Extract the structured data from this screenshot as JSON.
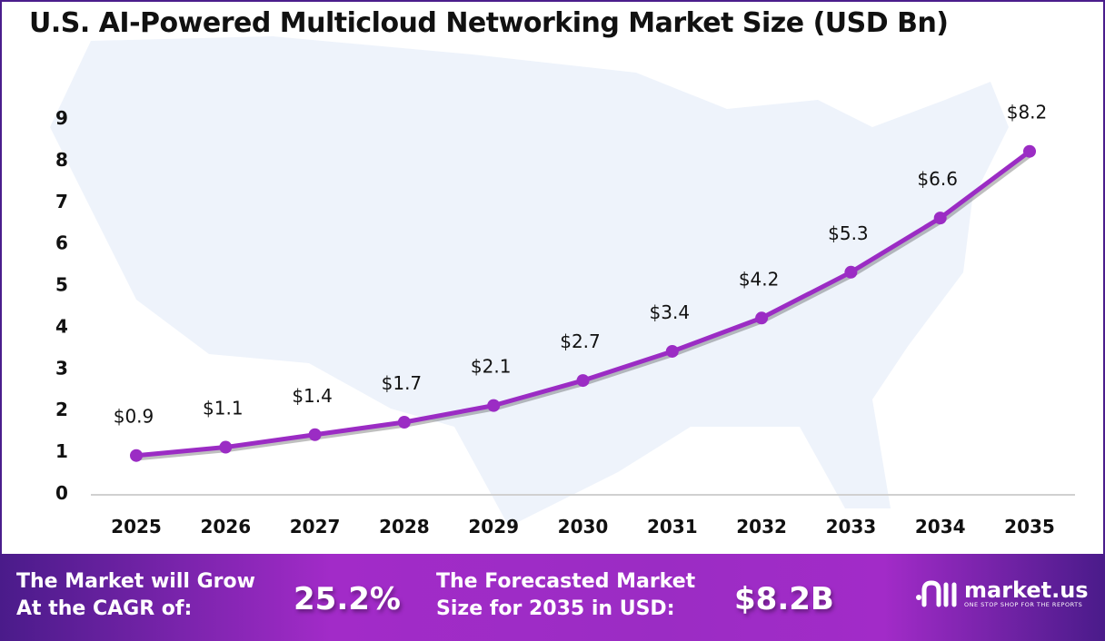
{
  "chart_data": {
    "type": "line",
    "title": "U.S. AI-Powered Multicloud Networking Market Size (USD Bn)",
    "categories": [
      "2025",
      "2026",
      "2027",
      "2028",
      "2029",
      "2030",
      "2031",
      "2032",
      "2033",
      "2034",
      "2035"
    ],
    "values": [
      0.9,
      1.1,
      1.4,
      1.7,
      2.1,
      2.7,
      3.4,
      4.2,
      5.3,
      6.6,
      8.2
    ],
    "data_labels": [
      "$0.9",
      "$1.1",
      "$1.4",
      "$1.7",
      "$2.1",
      "$2.7",
      "$3.4",
      "$4.2",
      "$5.3",
      "$6.6",
      "$8.2"
    ],
    "yticks": [
      "0",
      "1",
      "2",
      "3",
      "4",
      "5",
      "6",
      "7",
      "8",
      "9"
    ],
    "ylim": [
      0,
      9
    ],
    "grid": false,
    "line_color": "#9b2cc4"
  },
  "footer": {
    "cagr_label_line1": "The Market will Grow",
    "cagr_label_line2": "At the CAGR of:",
    "cagr_value": "25.2%",
    "forecast_label_line1": "The Forecasted Market",
    "forecast_label_line2": "Size for 2035 in USD:",
    "forecast_value": "$8.2B",
    "logo_name": "market.us",
    "logo_tagline": "ONE STOP SHOP FOR THE REPORTS"
  }
}
